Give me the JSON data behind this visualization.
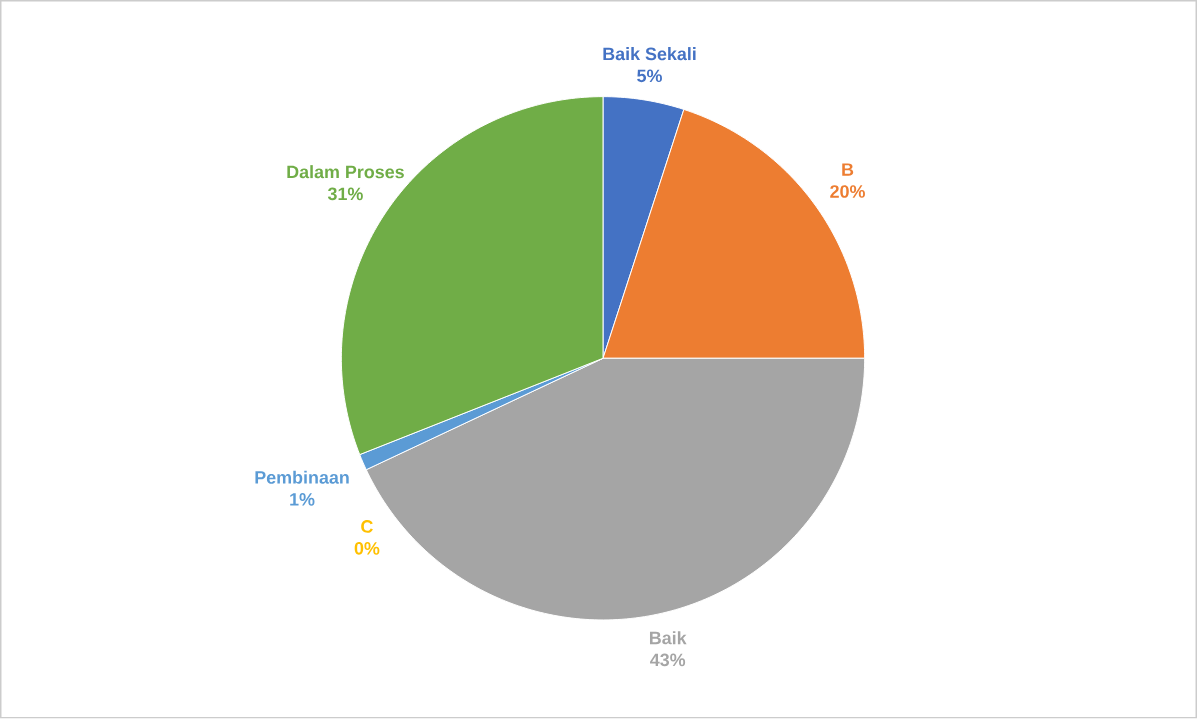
{
  "chart_data": {
    "type": "pie",
    "categories": [
      "Baik Sekali",
      "B",
      "Baik",
      "C",
      "Pembinaan",
      "Dalam Proses"
    ],
    "values": [
      5,
      20,
      43,
      0,
      1,
      31
    ],
    "value_labels": [
      "5%",
      "20%",
      "43%",
      "0%",
      "1%",
      "31%"
    ],
    "colors": [
      "#4472c4",
      "#ed7d31",
      "#a5a5a5",
      "#ffc000",
      "#5b9bd5",
      "#70ad47"
    ]
  }
}
